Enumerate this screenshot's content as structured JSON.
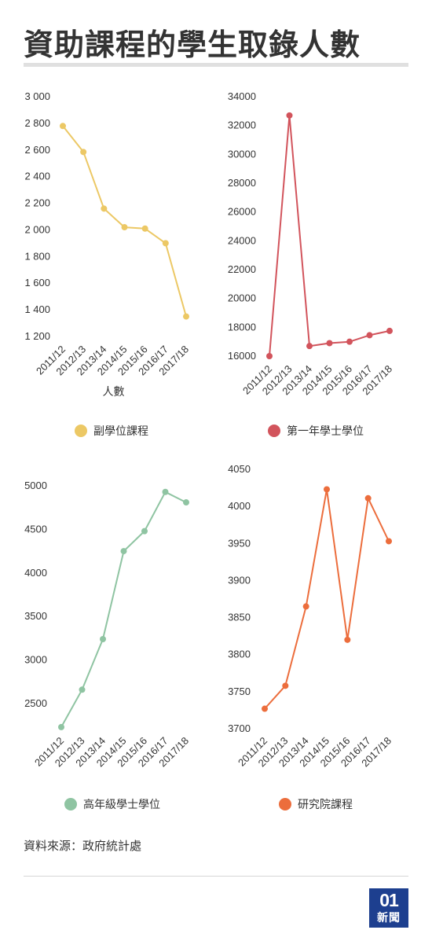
{
  "title": "資助課程的學生取錄人數",
  "source": "資料來源：政府統計處",
  "logo": {
    "number": "01",
    "text": "新聞"
  },
  "chart_data": [
    {
      "type": "line",
      "categories": [
        "2011/12",
        "2012/13",
        "2013/14",
        "2014/15",
        "2015/16",
        "2016/17",
        "2017/18"
      ],
      "series": [
        {
          "name": "副學位課程",
          "values": [
            2780,
            2585,
            2160,
            2020,
            2010,
            1900,
            1350
          ]
        }
      ],
      "color": "#ecc865",
      "ylim": [
        1200,
        3000
      ],
      "yticks": [
        1200,
        1400,
        1600,
        1800,
        2000,
        2200,
        2400,
        2600,
        2800,
        3000
      ],
      "ytick_labels": [
        "1 200",
        "1 400",
        "1 600",
        "1 800",
        "2 000",
        "2 200",
        "2 400",
        "2 600",
        "2 800",
        "3 000"
      ],
      "xlabel": "人數",
      "ylabel": ""
    },
    {
      "type": "line",
      "categories": [
        "2011/12",
        "2012/13",
        "2013/14",
        "2014/15",
        "2015/16",
        "2016/17",
        "2017/18"
      ],
      "series": [
        {
          "name": "第一年學士學位",
          "values": [
            16000,
            32700,
            16700,
            16900,
            17000,
            17450,
            17750
          ]
        }
      ],
      "color": "#d2545c",
      "ylim": [
        16000,
        34000
      ],
      "yticks": [
        16000,
        18000,
        20000,
        22000,
        24000,
        26000,
        28000,
        30000,
        32000,
        34000
      ],
      "ytick_labels": [
        "16000",
        "18000",
        "20000",
        "22000",
        "24000",
        "26000",
        "28000",
        "30000",
        "32000",
        "34000"
      ],
      "xlabel": "",
      "ylabel": ""
    },
    {
      "type": "line",
      "categories": [
        "2011/12",
        "2012/13",
        "2013/14",
        "2014/15",
        "2015/16",
        "2016/17",
        "2017/18"
      ],
      "series": [
        {
          "name": "高年級學士學位",
          "values": [
            2230,
            2660,
            3240,
            4250,
            4480,
            4930,
            4810
          ]
        }
      ],
      "color": "#8fc4a2",
      "ylim": [
        2500,
        5000
      ],
      "yticks": [
        2500,
        3000,
        3500,
        4000,
        4500,
        5000
      ],
      "ytick_labels": [
        "2500",
        "3000",
        "3500",
        "4000",
        "4500",
        "5000"
      ],
      "xlabel": "",
      "ylabel": ""
    },
    {
      "type": "line",
      "categories": [
        "2011/12",
        "2012/13",
        "2013/14",
        "2014/15",
        "2015/16",
        "2016/17",
        "2017/18"
      ],
      "series": [
        {
          "name": "研究院課程",
          "values": [
            3727,
            3758,
            3865,
            4023,
            3820,
            4011,
            3953
          ]
        }
      ],
      "color": "#ec6d3c",
      "ylim": [
        3700,
        4050
      ],
      "yticks": [
        3700,
        3750,
        3800,
        3850,
        3900,
        3950,
        4000,
        4050
      ],
      "ytick_labels": [
        "3700",
        "3750",
        "3800",
        "3850",
        "3900",
        "3950",
        "4000",
        "4050"
      ],
      "xlabel": "",
      "ylabel": ""
    }
  ]
}
